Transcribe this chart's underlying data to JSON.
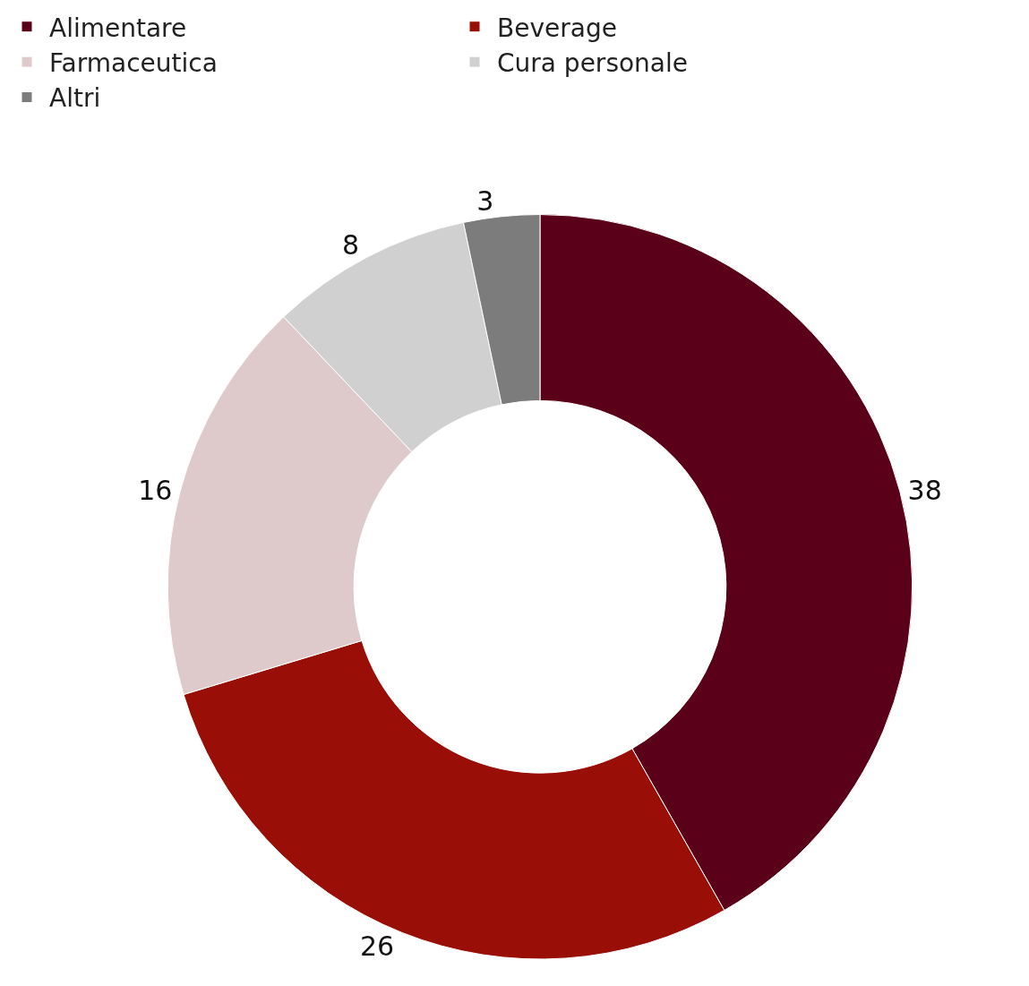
{
  "chart_data": {
    "type": "donut",
    "categories": [
      "Alimentare",
      "Beverage",
      "Farmaceutica",
      "Cura personale",
      "Altri"
    ],
    "values": [
      38,
      26,
      16,
      8,
      3
    ],
    "colors": [
      "#5a0018",
      "#990f08",
      "#dfcacb",
      "#d0d0d0",
      "#7c7c7c"
    ],
    "data_labels": true,
    "legend": "top"
  }
}
